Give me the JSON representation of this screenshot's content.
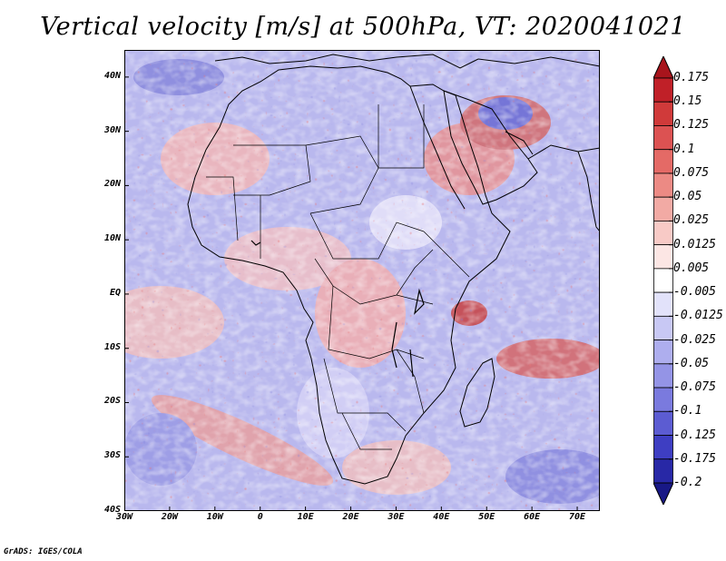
{
  "title": "Vertical velocity [m/s] at 500hPa, VT: 2020041021",
  "credit": "GrADS: IGES/COLA",
  "map": {
    "lon_range": [
      -30,
      75
    ],
    "lat_range": [
      -40,
      45
    ],
    "x_ticks": [
      "30W",
      "20W",
      "10W",
      "0",
      "10E",
      "20E",
      "30E",
      "40E",
      "50E",
      "60E",
      "70E"
    ],
    "y_ticks": [
      "40N",
      "30N",
      "20N",
      "10N",
      "EQ",
      "10S",
      "20S",
      "30S",
      "40S"
    ]
  },
  "colorbar": {
    "labels": [
      "0.175",
      "0.15",
      "0.125",
      "0.1",
      "0.075",
      "0.05",
      "0.025",
      "0.0125",
      "0.005",
      "-0.005",
      "-0.0125",
      "-0.025",
      "-0.05",
      "-0.075",
      "-0.1",
      "-0.125",
      "-0.175",
      "-0.2"
    ],
    "colors": [
      "#a8141c",
      "#c02028",
      "#d03a3a",
      "#dc5252",
      "#e46a66",
      "#ec8a84",
      "#f2aaa4",
      "#f8cac6",
      "#fce6e4",
      "#ffffff",
      "#e2e2fa",
      "#c8c8f4",
      "#aeaeee",
      "#9494e6",
      "#7a7ade",
      "#5c5cd2",
      "#3e3ec2",
      "#2828a6",
      "#181886"
    ]
  }
}
